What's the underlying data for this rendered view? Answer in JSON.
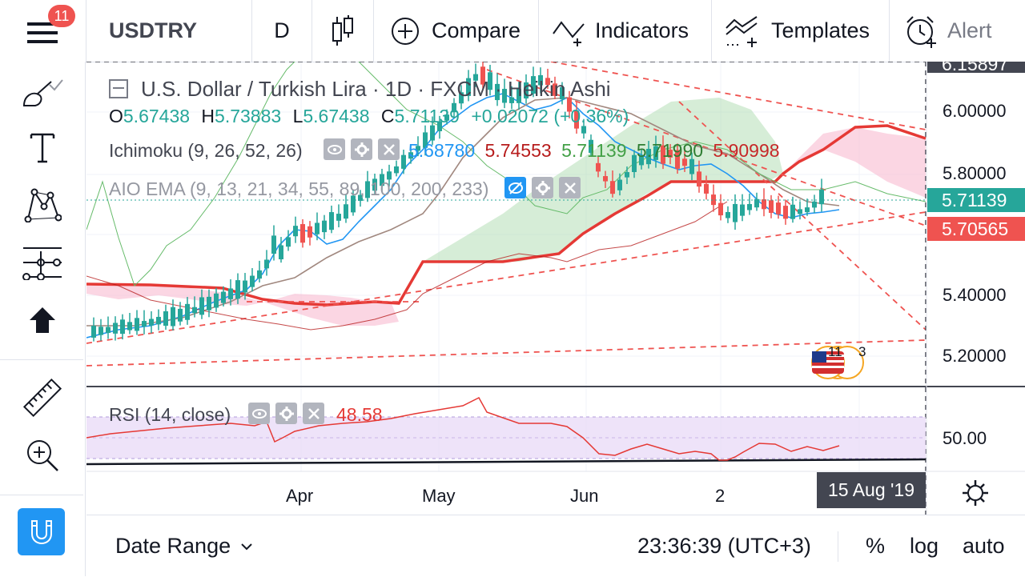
{
  "header": {
    "notification_count": "11",
    "symbol": "USDTRY",
    "interval": "D",
    "compare_label": "Compare",
    "indicators_label": "Indicators",
    "templates_label": "Templates",
    "alert_label": "Alert"
  },
  "legend": {
    "title": "U.S. Dollar / Turkish Lira · 1D · FXCM · Heikin Ashi",
    "ohlc": {
      "o_label": "O",
      "o": "5.67438",
      "h_label": "H",
      "h": "5.73883",
      "l_label": "L",
      "l": "5.67438",
      "c_label": "C",
      "c": "5.71139",
      "change": "+0.02072 (+0.36%)"
    },
    "ichimoku": {
      "label": "Ichimoku (9, 26, 52, 26)",
      "v1": "5.68780",
      "v2": "5.74553",
      "v3": "5.71139",
      "v4": "5.71990",
      "v5": "5.90998"
    },
    "aio_ema": {
      "label": "AIO EMA (9, 13, 21, 34, 55, 89, 100, 200, 233)"
    },
    "rsi": {
      "label": "RSI (14, close)",
      "value": "48.58"
    }
  },
  "price_axis": {
    "top_partial": "6.15897",
    "ticks": [
      "6.00000",
      "5.80000",
      "5.40000",
      "5.20000"
    ],
    "current_price": "5.71139",
    "second_price": "5.70565",
    "rsi_tick": "50.00"
  },
  "time_axis": {
    "labels": [
      "Apr",
      "May",
      "Jun",
      "2"
    ],
    "crosshair_date": "15 Aug '19"
  },
  "event_badge": {
    "count_a": "11",
    "count_b": "3"
  },
  "footer": {
    "date_range_label": "Date Range",
    "clock": "23:36:39 (UTC+3)",
    "percent_label": "%",
    "log_label": "log",
    "auto_label": "auto"
  },
  "colors": {
    "up": "#26a69a",
    "down": "#ef5350",
    "kijun": "#b71c1c",
    "tenkan": "#2196f3",
    "cloud_green": "#a5d6a7",
    "cloud_red": "#f8bbd0",
    "rsi_band": "#e8d9f7",
    "accent": "#2196f3"
  },
  "chart_data": {
    "type": "candlestick",
    "price_scale": [
      5.1,
      6.16
    ],
    "current_price": 5.71139
  }
}
